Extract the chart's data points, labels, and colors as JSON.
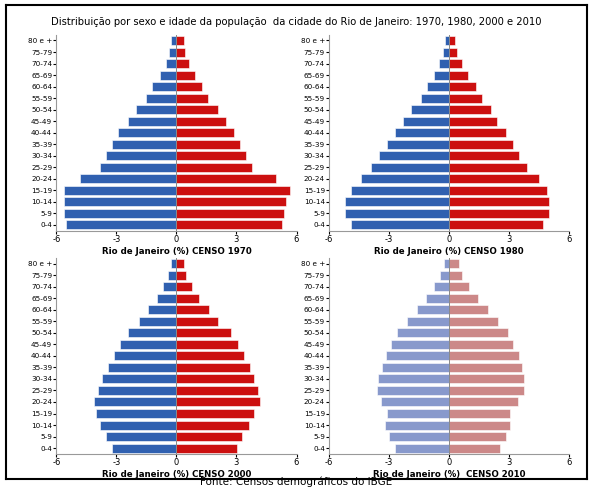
{
  "title": "Distribuição por sexo e idade da população  da cidade do Rio de Janeiro: 1970, 1980, 2000 e 2010",
  "footnote": "Fonte: Censos demográficos do IBGE",
  "age_groups": [
    "0-4",
    "5-9",
    "10-14",
    "15-19",
    "20-24",
    "25-29",
    "30-34",
    "35-39",
    "40-44",
    "45-49",
    "50-54",
    "55-59",
    "60-64",
    "65-69",
    "70-74",
    "75-79",
    "80 e +"
  ],
  "male_color": "#3060B0",
  "female_color": "#CC1010",
  "male_color_2010": "#8899CC",
  "female_color_2010": "#CC8888",
  "xlim": [
    -6,
    6
  ],
  "xticks": [
    -6,
    -3,
    0,
    3,
    6
  ],
  "xlabels": [
    "Rio de Janeiro (%) CENSO 1970",
    "Rio de Janeiro (%) CENSO 1980",
    "Rio de Janeiro (%) CENSO 2000",
    "Rio de Janeiro (%)  CENSO 2010"
  ],
  "data_1970": {
    "male": [
      5.5,
      5.6,
      5.6,
      5.6,
      4.8,
      3.8,
      3.5,
      3.2,
      2.9,
      2.4,
      2.0,
      1.5,
      1.2,
      0.8,
      0.5,
      0.35,
      0.25
    ],
    "female": [
      5.3,
      5.4,
      5.5,
      5.7,
      5.0,
      3.8,
      3.5,
      3.2,
      2.9,
      2.5,
      2.1,
      1.6,
      1.3,
      0.95,
      0.65,
      0.45,
      0.4
    ]
  },
  "data_1980": {
    "male": [
      4.9,
      5.2,
      5.2,
      4.9,
      4.4,
      3.9,
      3.5,
      3.1,
      2.7,
      2.3,
      1.9,
      1.4,
      1.1,
      0.75,
      0.5,
      0.3,
      0.2
    ],
    "female": [
      4.7,
      5.0,
      5.0,
      4.9,
      4.5,
      3.9,
      3.5,
      3.2,
      2.85,
      2.4,
      2.1,
      1.65,
      1.35,
      0.95,
      0.65,
      0.4,
      0.3
    ]
  },
  "data_2000": {
    "male": [
      3.2,
      3.5,
      3.8,
      4.0,
      4.1,
      3.9,
      3.7,
      3.4,
      3.1,
      2.8,
      2.4,
      1.85,
      1.4,
      0.95,
      0.65,
      0.4,
      0.28
    ],
    "female": [
      3.05,
      3.3,
      3.65,
      3.9,
      4.2,
      4.1,
      3.9,
      3.7,
      3.4,
      3.1,
      2.75,
      2.1,
      1.65,
      1.15,
      0.8,
      0.5,
      0.38
    ]
  },
  "data_2010": {
    "male": [
      2.7,
      3.0,
      3.2,
      3.1,
      3.4,
      3.6,
      3.55,
      3.35,
      3.15,
      2.9,
      2.6,
      2.1,
      1.6,
      1.15,
      0.75,
      0.45,
      0.28
    ],
    "female": [
      2.55,
      2.85,
      3.05,
      3.05,
      3.45,
      3.75,
      3.75,
      3.65,
      3.5,
      3.2,
      2.95,
      2.45,
      1.95,
      1.45,
      0.98,
      0.65,
      0.48
    ]
  }
}
